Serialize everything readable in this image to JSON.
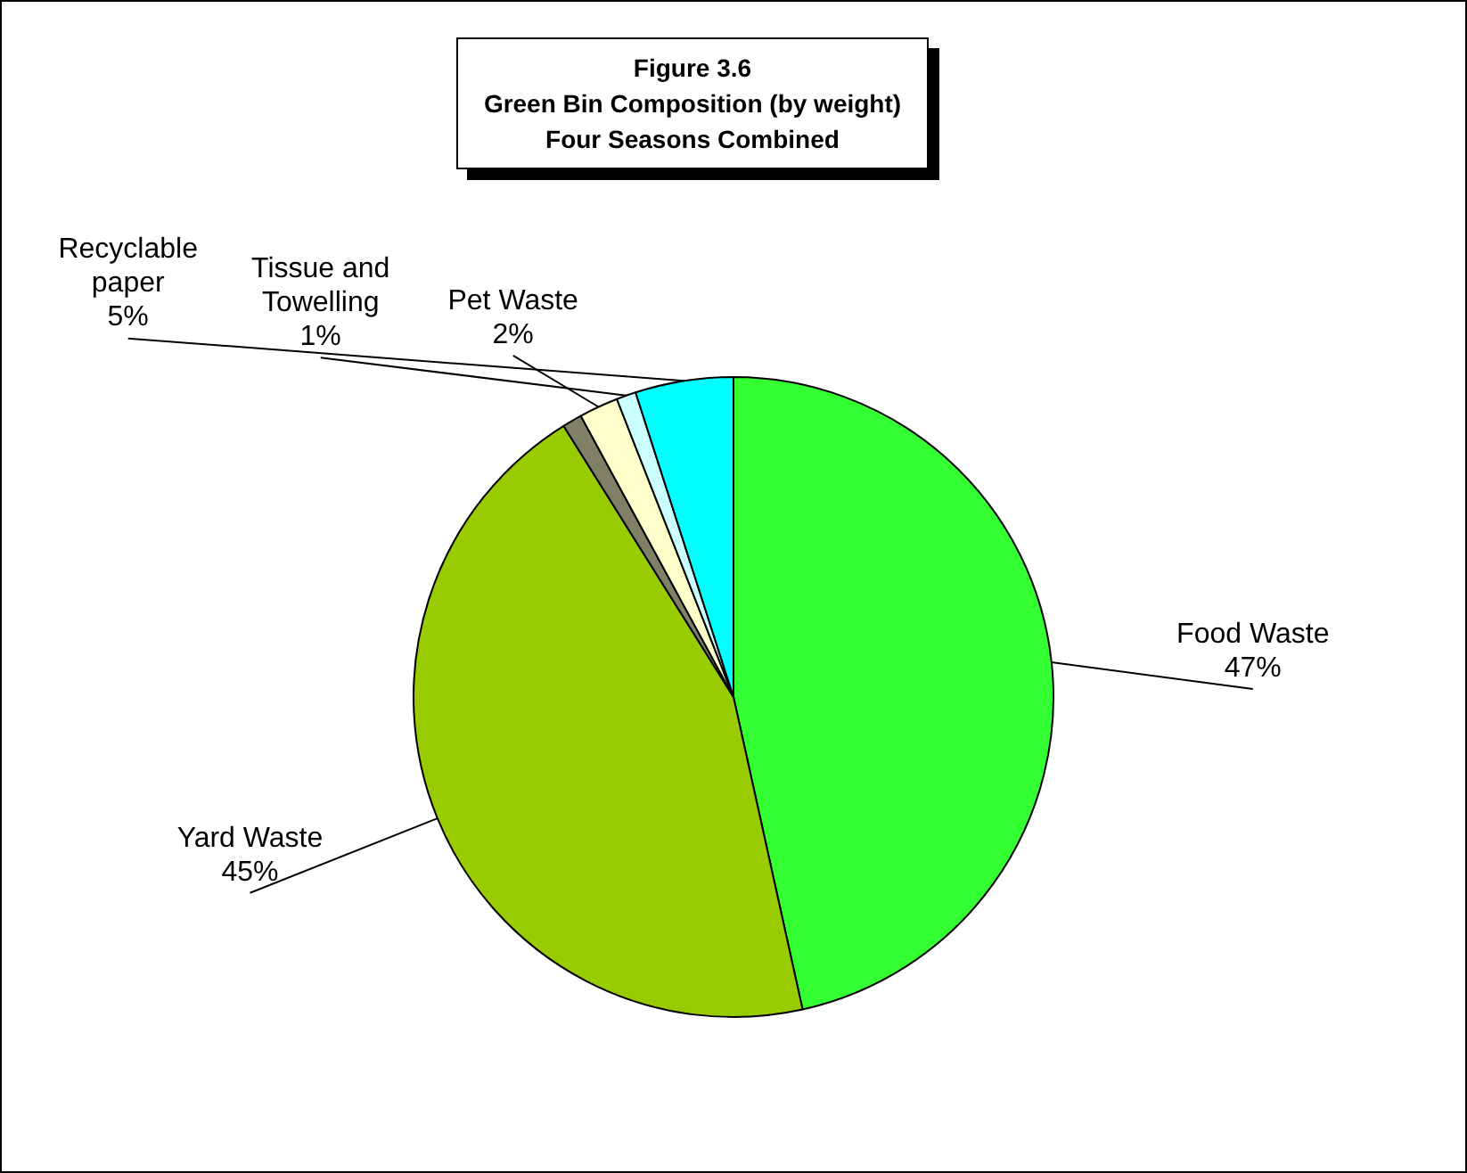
{
  "chart_data": {
    "type": "pie",
    "title": "Figure 3.6\nGreen Bin Composition (by weight)\nFour Seasons Combined",
    "categories": [
      "Food Waste",
      "Yard Waste",
      null,
      "Pet Waste",
      "Tissue and Towelling",
      "Recyclable paper"
    ],
    "values": [
      47,
      45,
      1,
      2,
      1,
      5
    ],
    "value_labels": [
      "47%",
      "45%",
      null,
      "2%",
      "1%",
      "5%"
    ],
    "colors": [
      "#33ff33",
      "#99cc00",
      "#808066",
      "#ffffcc",
      "#ccffff",
      "#00ffff"
    ],
    "legend": false
  }
}
